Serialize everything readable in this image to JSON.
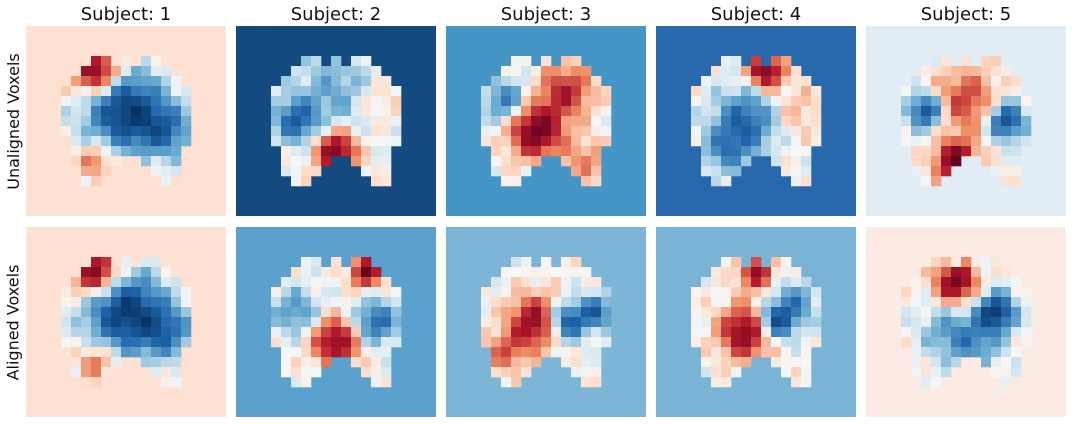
{
  "subjects": [
    "Subject: 1",
    "Subject: 2",
    "Subject: 3",
    "Subject: 4",
    "Subject: 5"
  ],
  "rows": [
    "Unaligned Voxels",
    "Aligned Voxels"
  ],
  "panel_backgrounds": [
    [
      "#fde1d3",
      "#134a7f",
      "#4695c7",
      "#2869ad",
      "#e2ecf4"
    ],
    [
      "#fde1d3",
      "#5aa1cd",
      "#7cb5d6",
      "#79b4d6",
      "#fbebe4"
    ]
  ],
  "colormap": "RdBu_r"
}
